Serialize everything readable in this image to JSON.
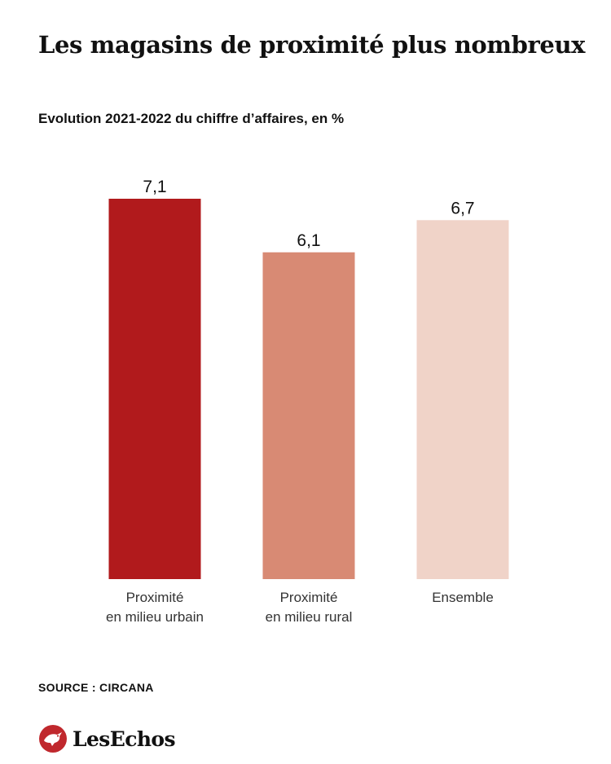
{
  "title": "Les magasins de proximité plus nombreux",
  "subtitle": "Evolution 2021-2022 du chiffre d’affaires, en %",
  "source": "SOURCE : CIRCANA",
  "brand": {
    "name": "LesEchos",
    "logo_icon": "les-echos-bird-icon",
    "logo_color": "#c0282d"
  },
  "chart_data": {
    "type": "bar",
    "title": "Les magasins de proximité plus nombreux",
    "subtitle": "Evolution 2021-2022 du chiffre d’affaires, en %",
    "categories": [
      [
        "Proximité",
        "en milieu urbain"
      ],
      [
        "Proximité",
        "en milieu rural"
      ],
      [
        "Ensemble"
      ]
    ],
    "values": [
      7.1,
      6.1,
      6.7
    ],
    "value_labels": [
      "7,1",
      "6,1",
      "6,7"
    ],
    "colors": [
      "#b11a1c",
      "#d88a74",
      "#f0d3c8"
    ],
    "ylim": [
      0,
      7.1
    ],
    "grid": false,
    "legend": "none"
  }
}
